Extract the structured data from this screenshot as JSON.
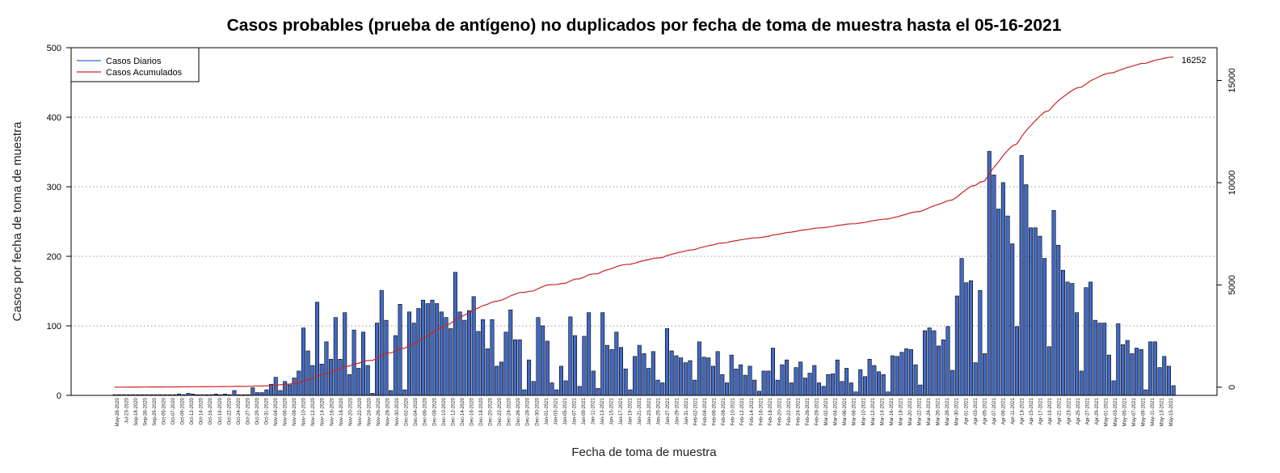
{
  "chart_data": {
    "type": "bar+line",
    "title": "Casos probables (prueba de antígeno) no duplicados por fecha de toma de muestra hasta el 05-16-2021",
    "xlabel": "Fecha de toma de muestra",
    "ylabel": "Casos por fecha de toma de muestra",
    "ylim": [
      0,
      500
    ],
    "yticks": [
      0,
      100,
      200,
      300,
      400,
      500
    ],
    "y2lim": [
      -400,
      16600
    ],
    "y2ticks": [
      0,
      5000,
      10000,
      15000
    ],
    "grid": "horizontal dotted",
    "legend_position": "top-left",
    "start_date": "2020-05-28",
    "end_date": "2021-05-15",
    "x_tick_labels": [
      "May-28-2020",
      "Jul-23-2020",
      "Sep-18-2020",
      "Sep-26-2020",
      "Sep-29-2020",
      "Oct-05-2020",
      "Oct-07-2020",
      "Oct-09-2020",
      "Oct-12-2020",
      "Oct-14-2020",
      "Oct-16-2020",
      "Oct-19-2020",
      "Oct-22-2020",
      "Oct-24-2020",
      "Oct-27-2020",
      "Oct-29-2020",
      "Oct-31-2020",
      "Nov-04-2020",
      "Nov-06-2020",
      "Nov-08-2020",
      "Nov-10-2020",
      "Nov-12-2020",
      "Nov-14-2020",
      "Nov-16-2020",
      "Nov-18-2020",
      "Nov-20-2020",
      "Nov-22-2020",
      "Nov-24-2020",
      "Nov-26-2020",
      "Nov-28-2020",
      "Nov-30-2020",
      "Dec-02-2020",
      "Dec-04-2020",
      "Dec-06-2020",
      "Dec-08-2020",
      "Dec-10-2020",
      "Dec-12-2020",
      "Dec-14-2020",
      "Dec-16-2020",
      "Dec-18-2020",
      "Dec-20-2020",
      "Dec-22-2020",
      "Dec-24-2020",
      "Dec-26-2020",
      "Dec-28-2020",
      "Dec-30-2020",
      "Jan-01-2021",
      "Jan-03-2021",
      "Jan-05-2021",
      "Jan-07-2021",
      "Jan-09-2021",
      "Jan-11-2021",
      "Jan-13-2021",
      "Jan-15-2021",
      "Jan-17-2021",
      "Jan-19-2021",
      "Jan-21-2021",
      "Jan-23-2021",
      "Jan-25-2021",
      "Jan-27-2021",
      "Jan-29-2021",
      "Jan-31-2021",
      "Feb-02-2021",
      "Feb-04-2021",
      "Feb-06-2021",
      "Feb-08-2021",
      "Feb-10-2021",
      "Feb-12-2021",
      "Feb-14-2021",
      "Feb-16-2021",
      "Feb-18-2021",
      "Feb-20-2021",
      "Feb-22-2021",
      "Feb-24-2021",
      "Feb-26-2021",
      "Feb-28-2021",
      "Mar-02-2021",
      "Mar-04-2021",
      "Mar-06-2021",
      "Mar-08-2021",
      "Mar-10-2021",
      "Mar-12-2021",
      "Mar-14-2021",
      "Mar-16-2021",
      "Mar-18-2021",
      "Mar-20-2021",
      "Mar-22-2021",
      "Mar-24-2021",
      "Mar-26-2021",
      "Mar-28-2021",
      "Mar-30-2021",
      "Apr-01-2021",
      "Apr-03-2021",
      "Apr-05-2021",
      "Apr-07-2021",
      "Apr-09-2021",
      "Apr-11-2021",
      "Apr-13-2021",
      "Apr-15-2021",
      "Apr-17-2021",
      "Apr-19-2021",
      "Apr-21-2021",
      "Apr-23-2021",
      "Apr-25-2021",
      "Apr-27-2021",
      "Apr-29-2021",
      "May-01-2021",
      "May-03-2021",
      "May-05-2021",
      "May-07-2021",
      "May-09-2021",
      "May-11-2021",
      "May-13-2021",
      "May-15-2021"
    ],
    "series": [
      {
        "name": "Casos Diarios",
        "kind": "bar",
        "color": "#4169c4",
        "values": [
          1,
          1,
          1,
          1,
          1,
          1,
          1,
          1,
          1,
          1,
          1,
          1,
          1,
          1,
          2,
          1,
          3,
          2,
          1,
          1,
          1,
          1,
          2,
          1,
          2,
          1,
          7,
          1,
          1,
          1,
          11,
          4,
          4,
          8,
          16,
          26,
          7,
          20,
          15,
          25,
          35,
          97,
          64,
          43,
          134,
          45,
          77,
          52,
          112,
          52,
          119,
          30,
          94,
          39,
          91,
          43,
          3,
          104,
          151,
          108,
          7,
          86,
          131,
          8,
          120,
          104,
          125,
          137,
          132,
          137,
          132,
          120,
          112,
          96,
          177,
          120,
          108,
          122,
          142,
          92,
          109,
          67,
          109,
          42,
          48,
          91,
          123,
          80,
          80,
          8,
          51,
          20,
          112,
          100,
          78,
          18,
          8,
          42,
          21,
          113,
          86,
          13,
          85,
          119,
          35,
          10,
          119,
          72,
          66,
          91,
          69,
          38,
          8,
          56,
          72,
          60,
          39,
          63,
          22,
          18,
          96,
          64,
          57,
          54,
          47,
          50,
          22,
          77,
          55,
          54,
          42,
          63,
          30,
          18,
          58,
          38,
          44,
          29,
          42,
          22,
          6,
          35,
          35,
          68,
          22,
          44,
          51,
          18,
          40,
          48,
          25,
          32,
          43,
          18,
          13,
          30,
          31,
          51,
          20,
          39,
          18,
          5,
          37,
          27,
          52,
          43,
          34,
          30,
          5,
          57,
          56,
          62,
          67,
          66,
          44,
          15,
          93,
          97,
          93,
          71,
          80,
          99,
          36,
          143,
          197,
          162,
          165,
          47,
          151,
          60,
          351,
          317,
          268,
          306,
          258,
          218,
          99,
          345,
          303,
          241,
          241,
          229,
          197,
          70,
          266,
          216,
          180,
          163,
          161,
          119,
          35,
          155,
          163,
          108,
          104,
          104,
          58,
          21,
          103,
          73,
          79,
          60,
          68,
          66,
          8,
          77,
          77,
          40,
          56,
          42,
          14
        ]
      },
      {
        "name": "Casos Acumulados",
        "kind": "line",
        "color": "#cc2222",
        "end_label": "16252"
      }
    ]
  },
  "legend": {
    "items": [
      {
        "label": "Casos Diarios",
        "color": "#4169c4"
      },
      {
        "label": "Casos Acumulados",
        "color": "#cc2222"
      }
    ]
  }
}
